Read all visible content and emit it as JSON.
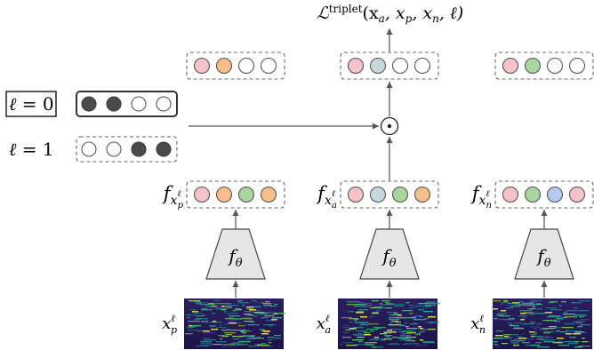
{
  "loss": {
    "symbol": "ℒ",
    "superscript": "triplet",
    "args": "(x",
    "arg_a": "a",
    "comma1": ", x",
    "arg_p": "p",
    "comma2": ", x",
    "arg_n": "n",
    "tail": ", ℓ)"
  },
  "conditions": [
    {
      "lhs": "ℓ",
      "eq": "= 0",
      "highlighted": true,
      "mask": [
        "filled",
        "filled",
        "empty",
        "empty"
      ]
    },
    {
      "lhs": "ℓ",
      "eq": "= 1",
      "highlighted": false,
      "mask": [
        "empty",
        "empty",
        "filled",
        "filled"
      ]
    }
  ],
  "operator": "⊙",
  "encoder_symbol": "f",
  "encoder_subscript": "θ",
  "branches": [
    {
      "id": "positive",
      "embed_f": "f",
      "embed_x": "x",
      "embed_sub": "p",
      "embed_sup": "ℓ",
      "input_x": "x",
      "input_sub": "p",
      "input_sup": "ℓ",
      "embedding_colors": [
        "#f4c2c8",
        "#f6be8a",
        "#a8d5a0",
        "#f6be8a"
      ],
      "masked_colors": [
        "#f4c2c8",
        "#f6be8a",
        "#ffffff",
        "#ffffff"
      ]
    },
    {
      "id": "anchor",
      "embed_f": "f",
      "embed_x": "x",
      "embed_sub": "a",
      "embed_sup": "ℓ",
      "input_x": "x",
      "input_sub": "a",
      "input_sup": "ℓ",
      "embedding_colors": [
        "#f4c2c8",
        "#c6d8dc",
        "#a8d5a0",
        "#f6be8a"
      ],
      "masked_colors": [
        "#f4c2c8",
        "#c6d8dc",
        "#ffffff",
        "#ffffff"
      ]
    },
    {
      "id": "negative",
      "embed_f": "f",
      "embed_x": "x",
      "embed_sub": "n",
      "embed_sup": "ℓ",
      "input_x": "x",
      "input_sub": "n",
      "input_sup": "ℓ",
      "embedding_colors": [
        "#f4c2c8",
        "#a8d5a0",
        "#b8c8f0",
        "#f4c2c8"
      ],
      "masked_colors": [
        "#f4c2c8",
        "#a8d5a0",
        "#ffffff",
        "#ffffff"
      ]
    }
  ]
}
